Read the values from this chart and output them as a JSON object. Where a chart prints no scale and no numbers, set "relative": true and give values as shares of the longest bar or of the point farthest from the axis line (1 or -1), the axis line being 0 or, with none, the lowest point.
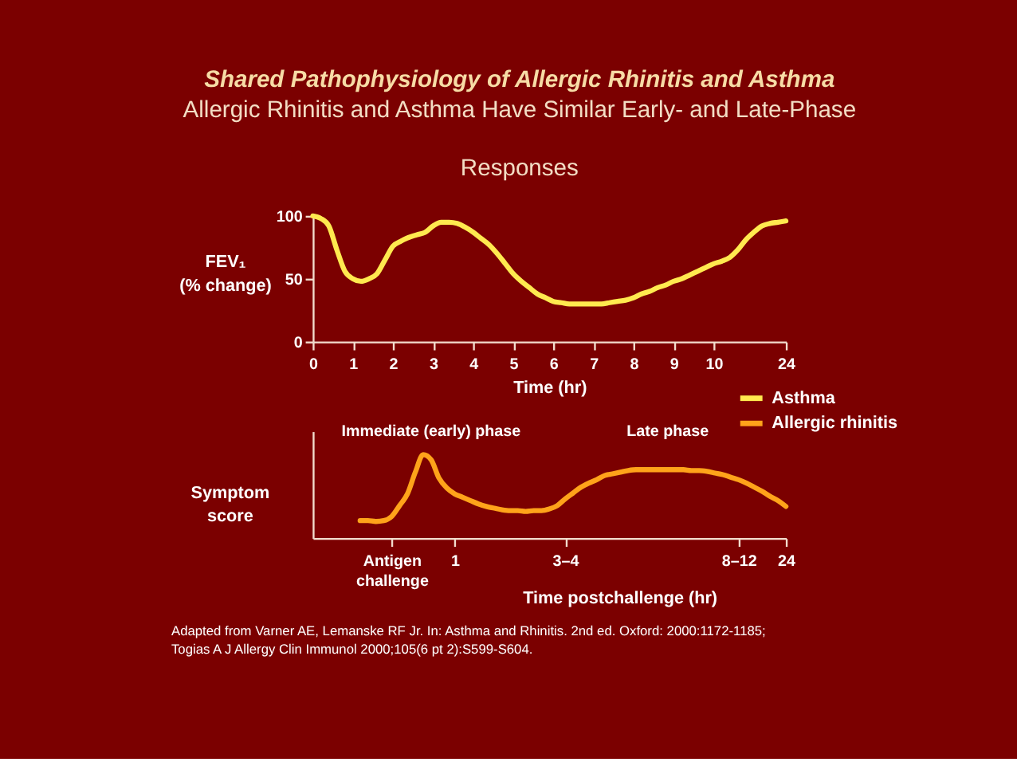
{
  "chart_data": [
    {
      "type": "line",
      "title": "Shared Pathophysiology of Allergic Rhinitis and Asthma",
      "subtitle": "Allergic Rhinitis and Asthma Have Similar Early- and Late-Phase Responses",
      "xlabel": "Time (hr)",
      "ylabel": "FEV₁ (% change)",
      "categories": [
        "0",
        null,
        null,
        null,
        null,
        "1",
        null,
        null,
        null,
        null,
        "2",
        null,
        null,
        null,
        null,
        "3",
        null,
        null,
        null,
        null,
        "4",
        null,
        null,
        null,
        null,
        "5",
        null,
        null,
        null,
        null,
        "6",
        null,
        null,
        null,
        null,
        "7",
        null,
        null,
        null,
        null,
        "8",
        null,
        null,
        null,
        null,
        "9",
        null,
        null,
        null,
        null,
        "10",
        null,
        null,
        null,
        null,
        null,
        null,
        null,
        null,
        "24"
      ],
      "series": [
        {
          "name": "Asthma",
          "color": "#ffe94f",
          "values": [
            100,
            98,
            92,
            73,
            56,
            50,
            48,
            50,
            54,
            65,
            76,
            80,
            83,
            85,
            87,
            92,
            95,
            95,
            94,
            91,
            87,
            82,
            77,
            70,
            62,
            54,
            48,
            43,
            38,
            35,
            32,
            31,
            30,
            30,
            30,
            30,
            30,
            31,
            32,
            33,
            35,
            38,
            40,
            43,
            45,
            48,
            50,
            53,
            56,
            59,
            62,
            64,
            67,
            73,
            81,
            87,
            92,
            94,
            95,
            96
          ]
        }
      ],
      "ylim": [
        0,
        100
      ],
      "yticks": [
        0,
        50,
        100
      ],
      "legend": "bottom right"
    },
    {
      "type": "line",
      "xlabel": "Time postchallenge (hr)",
      "ylabel": "Symptom score",
      "relative": true,
      "categories": [
        null,
        null,
        null,
        null,
        null,
        null,
        null,
        null,
        null,
        null,
        "Antigen challenge",
        null,
        null,
        null,
        null,
        null,
        null,
        null,
        "1",
        null,
        null,
        null,
        null,
        null,
        null,
        null,
        null,
        null,
        null,
        null,
        null,
        null,
        "3–4",
        null,
        null,
        null,
        null,
        null,
        null,
        null,
        null,
        null,
        null,
        null,
        null,
        null,
        null,
        null,
        null,
        null,
        null,
        null,
        null,
        null,
        "8–12",
        null,
        null,
        null,
        null,
        null,
        "24"
      ],
      "series": [
        {
          "name": "Allergic rhinitis",
          "color": "#ffa31a",
          "values": [
            null,
            null,
            null,
            null,
            null,
            null,
            0.21,
            0.21,
            0.2,
            0.21,
            0.26,
            0.39,
            0.53,
            0.79,
            1.0,
            0.94,
            0.72,
            0.6,
            0.53,
            0.49,
            0.45,
            0.41,
            0.38,
            0.36,
            0.34,
            0.33,
            0.33,
            0.32,
            0.33,
            0.33,
            0.35,
            0.39,
            0.47,
            0.54,
            0.61,
            0.66,
            0.7,
            0.75,
            0.77,
            0.79,
            0.81,
            0.82,
            0.82,
            0.82,
            0.82,
            0.82,
            0.82,
            0.82,
            0.81,
            0.81,
            0.8,
            0.78,
            0.76,
            0.73,
            0.7,
            0.66,
            0.61,
            0.56,
            0.5,
            0.45,
            0.38
          ]
        }
      ],
      "legend": "top right",
      "annotations": [
        "Immediate (early) phase",
        "Late phase",
        "Adapted from Varner AE, Lemanske RF Jr. In: Asthma and Rhinitis. 2nd ed. Oxford: 2000:1172-1185; Togias A J Allergy Clin Immunol 2000;105(6 pt 2):S599-S604."
      ]
    }
  ]
}
